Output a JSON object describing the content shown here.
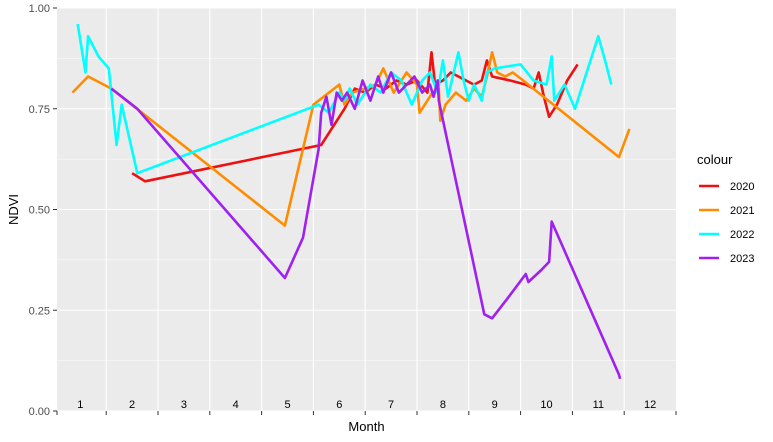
{
  "chart_data": {
    "type": "line",
    "title": "",
    "xlabel": "Month",
    "ylabel": "NDVI",
    "xlim": [
      0.55,
      12.5
    ],
    "ylim": [
      0.0,
      1.0
    ],
    "y_ticks": [
      0.0,
      0.25,
      0.5,
      0.75,
      1.0
    ],
    "y_tick_labels": [
      "0.00",
      "0.25",
      "0.50",
      "0.75",
      "1.00"
    ],
    "x_tick_labels": [
      "1",
      "2",
      "3",
      "4",
      "5",
      "6",
      "7",
      "8",
      "9",
      "10",
      "11",
      "12"
    ],
    "x_label_positions": [
      1,
      2,
      3,
      4,
      5,
      6,
      7,
      8,
      9,
      10,
      11,
      12
    ],
    "x_tick_marks": [
      0.55,
      1.5,
      2.5,
      3.5,
      4.5,
      5.5,
      6.5,
      7.5,
      8.5,
      9.5,
      10.5,
      11.5,
      12.5
    ],
    "grid": true,
    "legend_title": "colour",
    "legend_position": "right",
    "colors": {
      "panel_bg": "#ebebeb",
      "grid": "#ffffff",
      "tick_label": "#4d4d4d"
    },
    "series": [
      {
        "name": "2020",
        "color": "#ee1111",
        "points": [
          [
            2.0,
            0.59
          ],
          [
            2.25,
            0.57
          ],
          [
            5.65,
            0.66
          ],
          [
            6.1,
            0.75
          ],
          [
            6.3,
            0.8
          ],
          [
            6.5,
            0.79
          ],
          [
            6.7,
            0.81
          ],
          [
            6.9,
            0.8
          ],
          [
            7.1,
            0.82
          ],
          [
            7.3,
            0.81
          ],
          [
            7.5,
            0.82
          ],
          [
            7.7,
            0.79
          ],
          [
            7.78,
            0.89
          ],
          [
            7.85,
            0.81
          ],
          [
            8.0,
            0.82
          ],
          [
            8.15,
            0.84
          ],
          [
            8.3,
            0.83
          ],
          [
            8.6,
            0.81
          ],
          [
            8.75,
            0.82
          ],
          [
            8.85,
            0.87
          ],
          [
            8.95,
            0.83
          ],
          [
            9.3,
            0.82
          ],
          [
            9.6,
            0.81
          ],
          [
            9.75,
            0.8
          ],
          [
            9.85,
            0.84
          ],
          [
            9.95,
            0.78
          ],
          [
            10.05,
            0.73
          ],
          [
            10.2,
            0.76
          ],
          [
            10.4,
            0.82
          ],
          [
            10.6,
            0.86
          ]
        ]
      },
      {
        "name": "2021",
        "color": "#ff8c00",
        "points": [
          [
            0.85,
            0.79
          ],
          [
            1.15,
            0.83
          ],
          [
            1.6,
            0.8
          ],
          [
            4.95,
            0.46
          ],
          [
            5.5,
            0.76
          ],
          [
            6.0,
            0.81
          ],
          [
            6.1,
            0.76
          ],
          [
            6.25,
            0.79
          ],
          [
            6.5,
            0.8
          ],
          [
            6.7,
            0.81
          ],
          [
            6.85,
            0.85
          ],
          [
            7.05,
            0.79
          ],
          [
            7.3,
            0.84
          ],
          [
            7.5,
            0.81
          ],
          [
            7.55,
            0.74
          ],
          [
            7.8,
            0.79
          ],
          [
            7.92,
            0.8
          ],
          [
            7.95,
            0.72
          ],
          [
            8.05,
            0.76
          ],
          [
            8.25,
            0.79
          ],
          [
            8.45,
            0.77
          ],
          [
            8.6,
            0.8
          ],
          [
            8.75,
            0.78
          ],
          [
            8.85,
            0.83
          ],
          [
            8.95,
            0.89
          ],
          [
            9.05,
            0.84
          ],
          [
            9.2,
            0.83
          ],
          [
            9.35,
            0.84
          ],
          [
            9.55,
            0.82
          ],
          [
            11.4,
            0.63
          ],
          [
            11.6,
            0.7
          ]
        ]
      },
      {
        "name": "2022",
        "color": "#00ffff",
        "points": [
          [
            0.95,
            0.96
          ],
          [
            1.1,
            0.84
          ],
          [
            1.15,
            0.93
          ],
          [
            1.35,
            0.88
          ],
          [
            1.55,
            0.85
          ],
          [
            1.7,
            0.66
          ],
          [
            1.8,
            0.76
          ],
          [
            2.1,
            0.59
          ],
          [
            5.6,
            0.76
          ],
          [
            5.8,
            0.74
          ],
          [
            6.0,
            0.79
          ],
          [
            6.1,
            0.77
          ],
          [
            6.2,
            0.8
          ],
          [
            6.35,
            0.76
          ],
          [
            6.6,
            0.81
          ],
          [
            6.8,
            0.79
          ],
          [
            7.0,
            0.84
          ],
          [
            7.2,
            0.82
          ],
          [
            7.4,
            0.76
          ],
          [
            7.6,
            0.82
          ],
          [
            7.75,
            0.84
          ],
          [
            7.9,
            0.79
          ],
          [
            8.0,
            0.87
          ],
          [
            8.1,
            0.78
          ],
          [
            8.3,
            0.89
          ],
          [
            8.4,
            0.82
          ],
          [
            8.5,
            0.77
          ],
          [
            8.6,
            0.81
          ],
          [
            8.75,
            0.77
          ],
          [
            8.85,
            0.84
          ],
          [
            9.0,
            0.85
          ],
          [
            9.5,
            0.86
          ],
          [
            9.75,
            0.82
          ],
          [
            10.0,
            0.81
          ],
          [
            10.1,
            0.88
          ],
          [
            10.15,
            0.77
          ],
          [
            10.35,
            0.81
          ],
          [
            10.55,
            0.75
          ],
          [
            11.0,
            0.93
          ],
          [
            11.15,
            0.86
          ],
          [
            11.25,
            0.81
          ]
        ]
      },
      {
        "name": "2023",
        "color": "#a020f0",
        "points": [
          [
            1.6,
            0.8
          ],
          [
            1.9,
            0.77
          ],
          [
            2.1,
            0.75
          ],
          [
            4.95,
            0.33
          ],
          [
            5.3,
            0.43
          ],
          [
            5.6,
            0.65
          ],
          [
            5.65,
            0.74
          ],
          [
            5.75,
            0.78
          ],
          [
            5.85,
            0.71
          ],
          [
            5.95,
            0.79
          ],
          [
            6.05,
            0.77
          ],
          [
            6.15,
            0.79
          ],
          [
            6.3,
            0.75
          ],
          [
            6.45,
            0.82
          ],
          [
            6.6,
            0.77
          ],
          [
            6.75,
            0.83
          ],
          [
            6.85,
            0.79
          ],
          [
            7.0,
            0.84
          ],
          [
            7.15,
            0.79
          ],
          [
            7.3,
            0.81
          ],
          [
            7.45,
            0.83
          ],
          [
            7.6,
            0.79
          ],
          [
            7.75,
            0.81
          ],
          [
            7.82,
            0.78
          ],
          [
            7.9,
            0.82
          ],
          [
            7.92,
            0.77
          ],
          [
            8.8,
            0.24
          ],
          [
            8.95,
            0.23
          ],
          [
            9.25,
            0.28
          ],
          [
            9.6,
            0.34
          ],
          [
            9.65,
            0.32
          ],
          [
            9.9,
            0.35
          ],
          [
            10.05,
            0.37
          ],
          [
            10.1,
            0.47
          ],
          [
            11.4,
            0.09
          ],
          [
            11.42,
            0.08
          ]
        ]
      }
    ]
  }
}
